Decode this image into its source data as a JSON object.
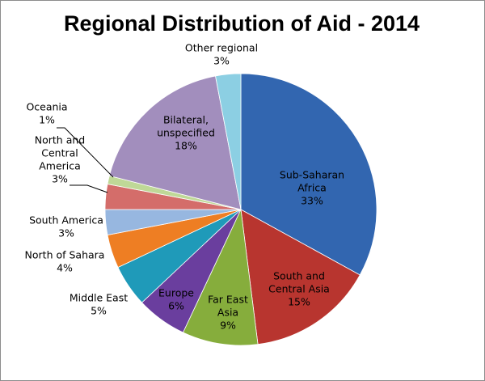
{
  "chart_data": {
    "type": "pie",
    "title": "Regional Distribution of Aid - 2014",
    "slices": [
      {
        "label": "Sub-Saharan Africa",
        "label_lines": [
          "Sub-Saharan",
          "Africa"
        ],
        "value": 33,
        "display": "33%",
        "color": "#3266b0",
        "label_placement": "inside",
        "label_color": "#000000"
      },
      {
        "label": "South and Central Asia",
        "label_lines": [
          "South and",
          "Central Asia"
        ],
        "value": 15,
        "display": "15%",
        "color": "#b8352f",
        "label_placement": "inside",
        "label_color": "#000000"
      },
      {
        "label": "Far East Asia",
        "label_lines": [
          "Far East",
          "Asia"
        ],
        "value": 9,
        "display": "9%",
        "color": "#86ad3c",
        "label_placement": "inside",
        "label_color": "#000000"
      },
      {
        "label": "Europe",
        "label_lines": [
          "Europe"
        ],
        "value": 6,
        "display": "6%",
        "color": "#6a3e9e",
        "label_placement": "inside",
        "label_color": "#000000"
      },
      {
        "label": "Middle East",
        "label_lines": [
          "Middle East"
        ],
        "value": 5,
        "display": "5%",
        "color": "#1f9ab9",
        "label_placement": "outside",
        "label_color": "#000000"
      },
      {
        "label": "North of Sahara",
        "label_lines": [
          "North of Sahara"
        ],
        "value": 4,
        "display": "4%",
        "color": "#ee7e23",
        "label_placement": "outside",
        "label_color": "#000000"
      },
      {
        "label": "South America",
        "label_lines": [
          "South America"
        ],
        "value": 3,
        "display": "3%",
        "color": "#97b7e0",
        "label_placement": "outside",
        "label_color": "#000000"
      },
      {
        "label": "North and Central America",
        "label_lines": [
          "North and",
          "Central",
          "America"
        ],
        "value": 3,
        "display": "3%",
        "color": "#d46d6a",
        "label_placement": "outside-leader",
        "label_color": "#000000"
      },
      {
        "label": "Oceania",
        "label_lines": [
          "Oceania"
        ],
        "value": 1,
        "display": "1%",
        "color": "#bfd897",
        "label_placement": "outside-leader",
        "label_color": "#000000"
      },
      {
        "label": "Bilateral, unspecified",
        "label_lines": [
          "Bilateral,",
          "unspecified"
        ],
        "value": 18,
        "display": "18%",
        "color": "#a28ebd",
        "label_placement": "inside",
        "label_color": "#000000"
      },
      {
        "label": "Other regional",
        "label_lines": [
          "Other regional"
        ],
        "value": 3,
        "display": "3%",
        "color": "#8ccfe3",
        "label_placement": "outside",
        "label_color": "#000000"
      }
    ],
    "start_angle": "12 o'clock",
    "direction": "clockwise",
    "legend": "none"
  }
}
